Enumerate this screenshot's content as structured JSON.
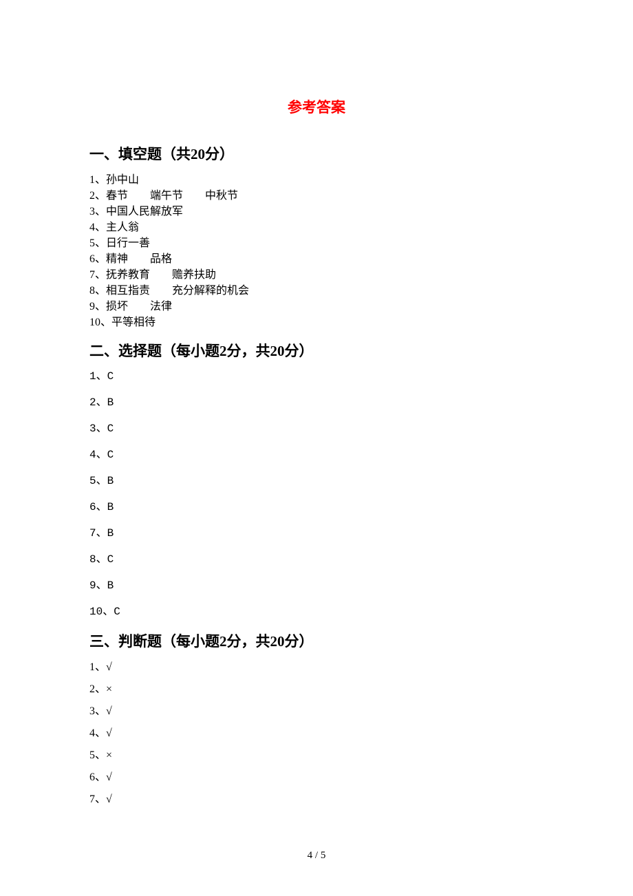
{
  "title": "参考答案",
  "sections": {
    "fill": {
      "heading": "一、填空题（共20分）",
      "items": [
        "1、孙中山",
        "2、春节　　端午节　　中秋节",
        "3、中国人民解放军",
        "4、主人翁",
        "5、日行一善",
        "6、精神　　品格",
        "7、抚养教育　　赡养扶助",
        "8、相互指责　　充分解释的机会",
        "9、损坏　　法律",
        "10、平等相待"
      ]
    },
    "choice": {
      "heading": "二、选择题（每小题2分，共20分）",
      "items": [
        "1、C",
        "2、B",
        "3、C",
        "4、C",
        "5、B",
        "6、B",
        "7、B",
        "8、C",
        "9、B",
        "10、C"
      ]
    },
    "judge": {
      "heading": "三、判断题（每小题2分，共20分）",
      "items": [
        "1、√",
        "2、×",
        "3、√",
        "4、√",
        "5、×",
        "6、√",
        "7、√"
      ]
    }
  },
  "pageNumber": "4 / 5"
}
